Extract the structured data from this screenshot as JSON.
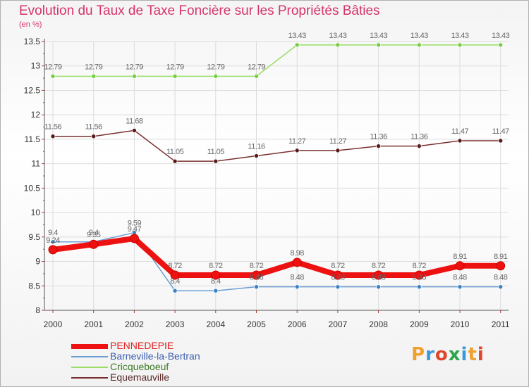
{
  "header": {
    "title": "Evolution du Taux de Taxe Foncière sur les Propriétés Bâties",
    "unit": "(en %)"
  },
  "logo": {
    "text": "Proxiti",
    "letter_colors": [
      "#f0a030",
      "#3a9ad9",
      "#e0462a",
      "#2fa54a",
      "#3a9ad9",
      "#f0a030",
      "#e0462a"
    ]
  },
  "colors": {
    "title": "#d6336c",
    "axis": "#555555",
    "tick_marks": "#c0392b",
    "grid": "#dddddd",
    "data_label": "#666666"
  },
  "chart_data": {
    "type": "line",
    "title": "Evolution du Taux de Taxe Foncière sur les Propriétés Bâties",
    "ylabel": "(en %)",
    "xlabel": "",
    "x": [
      "2000",
      "2001",
      "2002",
      "2003",
      "2004",
      "2005",
      "2006",
      "2007",
      "2008",
      "2009",
      "2010",
      "2011"
    ],
    "ylim": [
      8,
      13.5
    ],
    "yticks": [
      "8",
      "8.5",
      "9",
      "9.5",
      "10",
      "10.5",
      "11",
      "11.5",
      "12",
      "12.5",
      "13",
      "13.5"
    ],
    "legend_position": "bottom-left",
    "grid": true,
    "series": [
      {
        "name": "PENNEDEPIE",
        "values": [
          9.24,
          9.35,
          9.47,
          8.72,
          8.72,
          8.72,
          8.98,
          8.72,
          8.72,
          8.72,
          8.91,
          8.91
        ],
        "labels": [
          "9.24",
          "9.35",
          "9.47",
          "8.72",
          "8.72",
          "8.72",
          "8.98",
          "8.72",
          "8.72",
          "8.72",
          "8.91",
          "8.91"
        ],
        "line_color": "#ee1111",
        "marker_color": "#ee1111",
        "label_color": "#ee1111"
      },
      {
        "name": "Barneville-la-Bertran",
        "values": [
          9.4,
          9.4,
          9.59,
          8.4,
          8.4,
          8.48,
          8.48,
          8.48,
          8.48,
          8.48,
          8.48,
          8.48
        ],
        "labels": [
          "9.4",
          "9.4",
          "9.59",
          "8.4",
          "8.4",
          "8.48",
          "8.48",
          "8.48",
          "8.48",
          "8.48",
          "8.48",
          "8.48"
        ],
        "line_color": "#6a9fd4",
        "marker_color": "#3b82c4",
        "label_color": "#3b5fb0"
      },
      {
        "name": "Cricqueboeuf",
        "values": [
          12.79,
          12.79,
          12.79,
          12.79,
          12.79,
          12.79,
          13.43,
          13.43,
          13.43,
          13.43,
          13.43,
          13.43
        ],
        "labels": [
          "12.79",
          "12.79",
          "12.79",
          "12.79",
          "12.79",
          "12.79",
          "13.43",
          "13.43",
          "13.43",
          "13.43",
          "13.43",
          "13.43"
        ],
        "line_color": "#99dd66",
        "marker_color": "#77cc44",
        "label_color": "#55aa22"
      },
      {
        "name": "Equemauville",
        "values": [
          11.56,
          11.56,
          11.68,
          11.05,
          11.05,
          11.16,
          11.27,
          11.27,
          11.36,
          11.36,
          11.47,
          11.47
        ],
        "labels": [
          "11.56",
          "11.56",
          "11.68",
          "11.05",
          "11.05",
          "11.16",
          "11.27",
          "11.27",
          "11.36",
          "11.36",
          "11.47",
          "11.47"
        ],
        "line_color": "#7a3030",
        "marker_color": "#5a1a1a",
        "label_color": "#7a2e2e"
      }
    ]
  }
}
